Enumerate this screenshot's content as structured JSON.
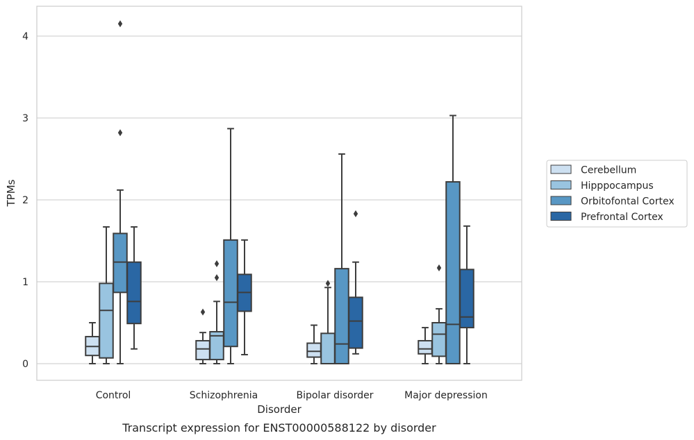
{
  "chart_data": {
    "type": "boxplot",
    "title": "Transcript expression for ENST00000588122 by disorder",
    "xlabel": "Disorder",
    "ylabel": "TPMs",
    "ylim": [
      -0.2,
      4.35
    ],
    "yticks": [
      0,
      1,
      2,
      3,
      4
    ],
    "grid": "horizontal",
    "legend_position": "right",
    "categories": [
      "Control",
      "Schizophrenia",
      "Bipolar disorder",
      "Major depression"
    ],
    "series": [
      {
        "name": "Cerebellum",
        "color": "#cde0f1",
        "boxes": [
          {
            "whislo": 0.0,
            "q1": 0.1,
            "med": 0.21,
            "q3": 0.33,
            "whishi": 0.5,
            "fliers": []
          },
          {
            "whislo": 0.0,
            "q1": 0.05,
            "med": 0.18,
            "q3": 0.28,
            "whishi": 0.38,
            "fliers": [
              0.63
            ]
          },
          {
            "whislo": 0.0,
            "q1": 0.08,
            "med": 0.15,
            "q3": 0.25,
            "whishi": 0.47,
            "fliers": []
          },
          {
            "whislo": 0.0,
            "q1": 0.12,
            "med": 0.18,
            "q3": 0.28,
            "whishi": 0.44,
            "fliers": []
          }
        ]
      },
      {
        "name": "Hipppocampus",
        "color": "#99c4e0",
        "boxes": [
          {
            "whislo": 0.0,
            "q1": 0.07,
            "med": 0.65,
            "q3": 0.98,
            "whishi": 1.67,
            "fliers": []
          },
          {
            "whislo": 0.0,
            "q1": 0.05,
            "med": 0.34,
            "q3": 0.39,
            "whishi": 0.76,
            "fliers": [
              1.05,
              1.22
            ]
          },
          {
            "whislo": 0.0,
            "q1": 0.0,
            "med": 0.0,
            "q3": 0.37,
            "whishi": 0.93,
            "fliers": [
              0.98
            ]
          },
          {
            "whislo": 0.0,
            "q1": 0.09,
            "med": 0.36,
            "q3": 0.5,
            "whishi": 0.67,
            "fliers": [
              1.17
            ]
          }
        ]
      },
      {
        "name": "Orbitofontal Cortex",
        "color": "#5897c4",
        "boxes": [
          {
            "whislo": 0.0,
            "q1": 0.87,
            "med": 1.24,
            "q3": 1.59,
            "whishi": 2.12,
            "fliers": [
              2.82,
              4.15
            ]
          },
          {
            "whislo": 0.0,
            "q1": 0.21,
            "med": 0.75,
            "q3": 1.51,
            "whishi": 2.87,
            "fliers": []
          },
          {
            "whislo": 0.0,
            "q1": 0.0,
            "med": 0.24,
            "q3": 1.16,
            "whishi": 2.56,
            "fliers": []
          },
          {
            "whislo": 0.0,
            "q1": 0.0,
            "med": 0.48,
            "q3": 2.22,
            "whishi": 3.03,
            "fliers": []
          }
        ]
      },
      {
        "name": "Prefrontal Cortex",
        "color": "#2a67a4",
        "boxes": [
          {
            "whislo": 0.18,
            "q1": 0.49,
            "med": 0.76,
            "q3": 1.24,
            "whishi": 1.67,
            "fliers": []
          },
          {
            "whislo": 0.11,
            "q1": 0.64,
            "med": 0.87,
            "q3": 1.09,
            "whishi": 1.51,
            "fliers": []
          },
          {
            "whislo": 0.12,
            "q1": 0.19,
            "med": 0.52,
            "q3": 0.81,
            "whishi": 1.24,
            "fliers": [
              1.83
            ]
          },
          {
            "whislo": 0.0,
            "q1": 0.44,
            "med": 0.57,
            "q3": 1.15,
            "whishi": 1.68,
            "fliers": []
          }
        ]
      }
    ]
  }
}
